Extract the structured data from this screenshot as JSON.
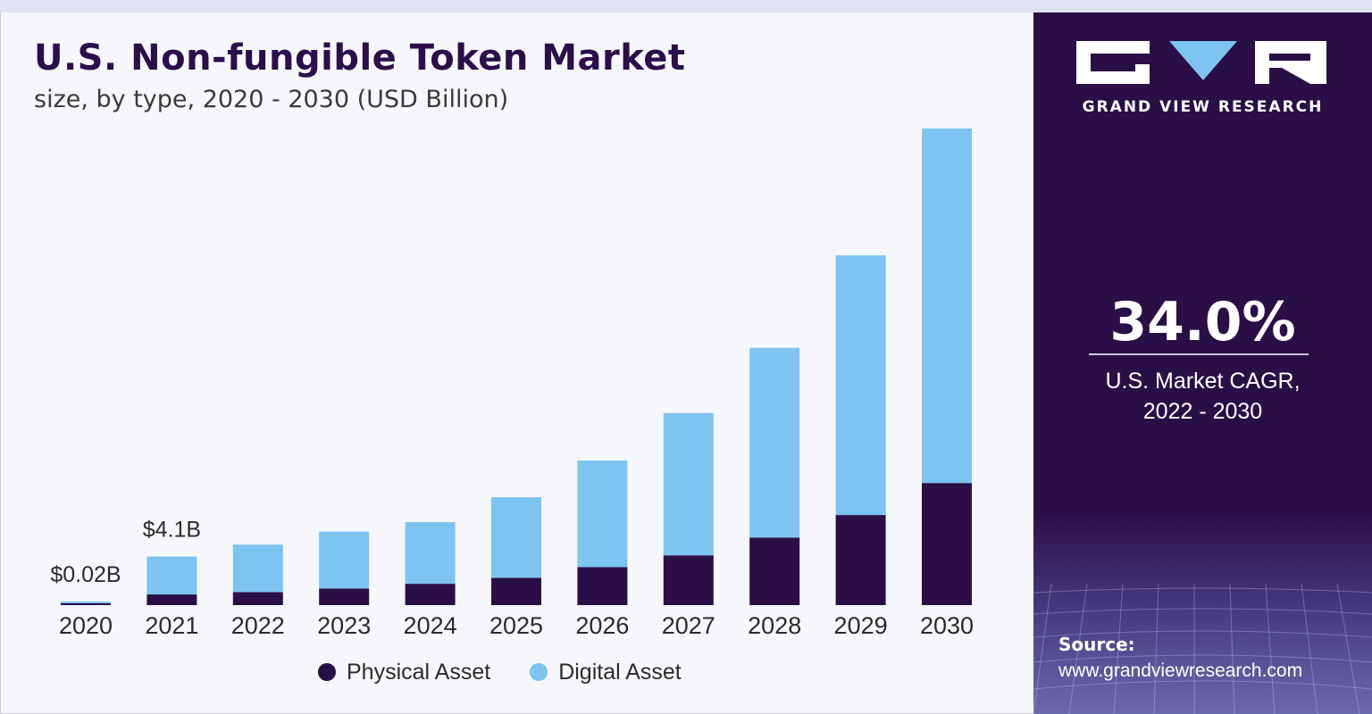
{
  "header": {
    "title": "U.S. Non-fungible Token Market",
    "subtitle": "size, by type, 2020 - 2030 (USD Billion)"
  },
  "brand": {
    "name": "GRAND VIEW RESEARCH",
    "panel_color": "#2a0f47",
    "logo_icon": "gvr-logo-icon"
  },
  "cagr": {
    "value": "34.0%",
    "label_line1": "U.S. Market CAGR,",
    "label_line2": "2022 - 2030"
  },
  "source": {
    "label": "Source:",
    "url": "www.grandviewresearch.com"
  },
  "chart_data": {
    "type": "bar",
    "stacked": true,
    "categories": [
      "2020",
      "2021",
      "2022",
      "2023",
      "2024",
      "2025",
      "2026",
      "2027",
      "2028",
      "2029",
      "2030"
    ],
    "series": [
      {
        "name": "Physical Asset",
        "color": "#2a0f47",
        "values": [
          0.01,
          0.9,
          1.1,
          1.4,
          1.8,
          2.3,
          3.2,
          4.2,
          5.7,
          7.6,
          10.3
        ]
      },
      {
        "name": "Digital Asset",
        "color": "#7ec4f0",
        "values": [
          0.01,
          3.2,
          4.0,
          4.8,
          5.2,
          6.8,
          9.0,
          12.0,
          16.0,
          21.9,
          29.9
        ]
      }
    ],
    "data_labels": [
      {
        "category": "2020",
        "text": "$0.02B"
      },
      {
        "category": "2021",
        "text": "$4.1B"
      }
    ],
    "ylim": [
      0,
      40.2
    ],
    "grid": false,
    "legend_position": "bottom-center"
  }
}
